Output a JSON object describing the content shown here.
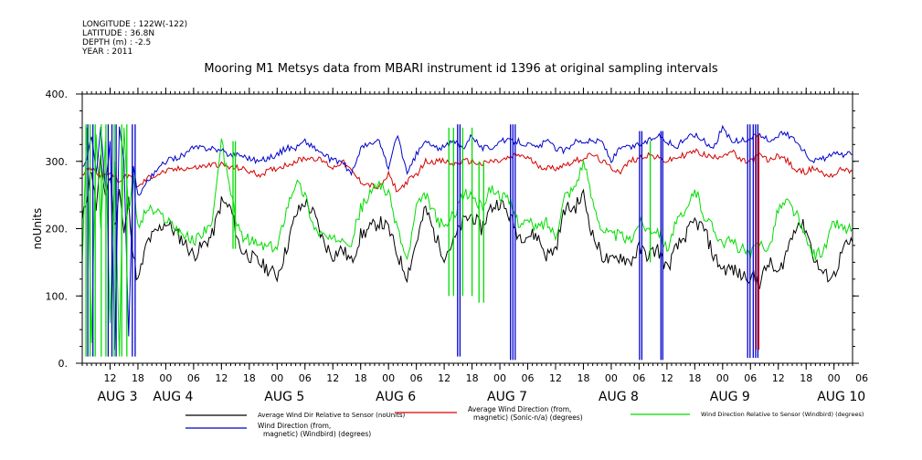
{
  "header": {
    "longitude": "LONGITUDE : 122W(-122)",
    "latitude": "LATITUDE : 36.8N",
    "depth": "DEPTH (m) : -2.5",
    "year": "YEAR : 2011"
  },
  "chart_data": {
    "type": "line",
    "title": "Mooring M1 Metsys data from MBARI instrument id 1396 at original sampling intervals",
    "ylabel": "noUnits",
    "ylim": [
      0,
      400
    ],
    "yticks": [
      0,
      100,
      200,
      300,
      400
    ],
    "ytick_labels": [
      "0.",
      "100.",
      "200.",
      "300.",
      "400."
    ],
    "x_range_hours": [
      6,
      172
    ],
    "x_unit": "hours since AUG 3 00:00",
    "hour_ticks": [
      {
        "h": 12,
        "label": "12"
      },
      {
        "h": 18,
        "label": "18"
      },
      {
        "h": 24,
        "label": "00"
      },
      {
        "h": 30,
        "label": "06"
      },
      {
        "h": 36,
        "label": "12"
      },
      {
        "h": 42,
        "label": "18"
      },
      {
        "h": 48,
        "label": "00"
      },
      {
        "h": 54,
        "label": "06"
      },
      {
        "h": 60,
        "label": "12"
      },
      {
        "h": 66,
        "label": "18"
      },
      {
        "h": 72,
        "label": "00"
      },
      {
        "h": 78,
        "label": "06"
      },
      {
        "h": 84,
        "label": "12"
      },
      {
        "h": 90,
        "label": "18"
      },
      {
        "h": 96,
        "label": "00"
      },
      {
        "h": 102,
        "label": "06"
      },
      {
        "h": 108,
        "label": "12"
      },
      {
        "h": 114,
        "label": "18"
      },
      {
        "h": 120,
        "label": "00"
      },
      {
        "h": 126,
        "label": "06"
      },
      {
        "h": 132,
        "label": "12"
      },
      {
        "h": 138,
        "label": "18"
      },
      {
        "h": 144,
        "label": "00"
      },
      {
        "h": 150,
        "label": "06"
      },
      {
        "h": 156,
        "label": "12"
      },
      {
        "h": 162,
        "label": "18"
      },
      {
        "h": 168,
        "label": "00"
      },
      {
        "h": 174,
        "label": "06"
      }
    ],
    "day_labels": [
      {
        "h": 12,
        "label": "AUG  3"
      },
      {
        "h": 24,
        "label": "AUG  4"
      },
      {
        "h": 48,
        "label": "AUG  5"
      },
      {
        "h": 72,
        "label": "AUG  6"
      },
      {
        "h": 96,
        "label": "AUG  7"
      },
      {
        "h": 120,
        "label": "AUG  8"
      },
      {
        "h": 144,
        "label": "AUG  9"
      },
      {
        "h": 168,
        "label": "AUG 10"
      }
    ],
    "series": [
      {
        "name": "Average Wind Dir Relative to Sensor (noUnits)",
        "color": "#000000",
        "x": [
          6,
          8,
          9,
          10,
          11,
          12,
          13,
          14,
          15,
          16,
          17,
          18,
          20,
          24,
          28,
          30,
          34,
          36,
          38,
          40,
          44,
          48,
          50,
          52,
          54,
          56,
          58,
          60,
          62,
          64,
          66,
          70,
          72,
          74,
          76,
          78,
          80,
          82,
          84,
          86,
          88,
          90,
          92,
          94,
          96,
          98,
          100,
          102,
          104,
          106,
          108,
          110,
          112,
          114,
          116,
          118,
          120,
          122,
          124,
          126,
          128,
          130,
          132,
          134,
          136,
          138,
          140,
          142,
          144,
          146,
          148,
          150,
          152,
          154,
          156,
          158,
          160,
          162,
          164,
          166,
          168,
          170,
          172
        ],
        "y": [
          210,
          290,
          230,
          300,
          250,
          280,
          200,
          260,
          190,
          240,
          160,
          120,
          180,
          210,
          180,
          160,
          190,
          240,
          230,
          170,
          150,
          130,
          170,
          220,
          240,
          220,
          180,
          160,
          170,
          150,
          190,
          210,
          200,
          160,
          130,
          180,
          230,
          190,
          160,
          180,
          210,
          220,
          200,
          230,
          240,
          220,
          190,
          190,
          190,
          160,
          170,
          230,
          230,
          250,
          190,
          160,
          150,
          160,
          150,
          170,
          160,
          170,
          140,
          170,
          190,
          210,
          200,
          160,
          140,
          140,
          130,
          130,
          120,
          150,
          130,
          170,
          210,
          200,
          150,
          130,
          130,
          170,
          180
        ]
      },
      {
        "name": "Average Wind Direction (from, magnetic) (Sonic-n/a) (degrees)",
        "color": "#d40000",
        "x": [
          6,
          8,
          10,
          12,
          14,
          16,
          18,
          20,
          24,
          28,
          30,
          34,
          36,
          38,
          40,
          44,
          48,
          50,
          52,
          54,
          56,
          58,
          60,
          62,
          64,
          66,
          70,
          72,
          74,
          76,
          78,
          80,
          82,
          84,
          86,
          88,
          90,
          92,
          94,
          96,
          98,
          100,
          102,
          104,
          106,
          108,
          110,
          112,
          114,
          116,
          118,
          120,
          122,
          124,
          126,
          128,
          130,
          132,
          134,
          136,
          138,
          140,
          142,
          144,
          146,
          148,
          150,
          152,
          154,
          156,
          158,
          160,
          162,
          164,
          166,
          168,
          170,
          172
        ],
        "y": [
          280,
          290,
          275,
          285,
          270,
          280,
          260,
          275,
          285,
          290,
          290,
          295,
          295,
          290,
          290,
          280,
          290,
          295,
          300,
          305,
          305,
          300,
          290,
          300,
          285,
          270,
          260,
          280,
          255,
          270,
          280,
          300,
          300,
          300,
          295,
          300,
          300,
          295,
          300,
          300,
          305,
          310,
          305,
          295,
          290,
          290,
          295,
          300,
          305,
          310,
          300,
          290,
          285,
          300,
          305,
          310,
          305,
          300,
          305,
          310,
          315,
          310,
          305,
          310,
          315,
          300,
          300,
          310,
          300,
          310,
          300,
          285,
          285,
          290,
          280,
          280,
          290,
          285
        ]
      },
      {
        "name": "Wind Direction Relative to Sensor (Windbird) (degrees)",
        "color": "#00dd00",
        "x": [
          6,
          7,
          8,
          9,
          10,
          11,
          12,
          13,
          14,
          15,
          16,
          17,
          18,
          20,
          24,
          28,
          30,
          34,
          36,
          38,
          40,
          44,
          48,
          50,
          52,
          54,
          56,
          58,
          60,
          62,
          64,
          66,
          70,
          72,
          74,
          76,
          78,
          80,
          82,
          84,
          86,
          88,
          90,
          92,
          94,
          96,
          98,
          100,
          102,
          104,
          106,
          108,
          110,
          112,
          114,
          116,
          118,
          120,
          122,
          124,
          126,
          128,
          130,
          132,
          134,
          136,
          138,
          140,
          142,
          144,
          146,
          148,
          150,
          152,
          154,
          156,
          158,
          160,
          162,
          164,
          166,
          168,
          170,
          172
        ],
        "y": [
          150,
          350,
          30,
          340,
          200,
          330,
          60,
          300,
          10,
          350,
          220,
          280,
          200,
          230,
          215,
          190,
          180,
          210,
          330,
          250,
          190,
          175,
          170,
          230,
          270,
          250,
          200,
          190,
          180,
          190,
          180,
          230,
          270,
          250,
          200,
          150,
          230,
          250,
          220,
          200,
          220,
          250,
          250,
          230,
          260,
          250,
          240,
          210,
          210,
          200,
          210,
          190,
          250,
          260,
          300,
          240,
          200,
          190,
          190,
          180,
          210,
          200,
          200,
          170,
          210,
          220,
          260,
          220,
          200,
          180,
          180,
          170,
          160,
          180,
          170,
          230,
          240,
          220,
          180,
          160,
          170,
          210,
          200,
          200
        ]
      },
      {
        "name": "Wind Direction (from, magnetic) (Windbird) (degrees)",
        "color": "#0000cc",
        "x": [
          6,
          7,
          8,
          9,
          10,
          11,
          12,
          13,
          14,
          15,
          16,
          17,
          18,
          20,
          24,
          28,
          30,
          34,
          36,
          38,
          40,
          44,
          48,
          50,
          52,
          54,
          56,
          58,
          60,
          62,
          64,
          66,
          70,
          72,
          74,
          76,
          78,
          80,
          82,
          84,
          86,
          88,
          90,
          92,
          94,
          96,
          98,
          100,
          102,
          104,
          106,
          108,
          110,
          112,
          114,
          116,
          118,
          120,
          122,
          124,
          126,
          128,
          130,
          132,
          134,
          136,
          138,
          140,
          142,
          144,
          146,
          148,
          150,
          152,
          154,
          156,
          158,
          160,
          162,
          164,
          166,
          168,
          170,
          172
        ],
        "y": [
          290,
          300,
          340,
          280,
          350,
          260,
          330,
          20,
          350,
          300,
          40,
          290,
          250,
          270,
          300,
          310,
          320,
          320,
          315,
          310,
          310,
          300,
          310,
          320,
          320,
          330,
          320,
          310,
          300,
          300,
          280,
          320,
          330,
          290,
          340,
          280,
          310,
          330,
          320,
          320,
          330,
          320,
          340,
          320,
          320,
          330,
          330,
          330,
          325,
          320,
          330,
          320,
          315,
          330,
          330,
          330,
          330,
          300,
          320,
          320,
          325,
          330,
          340,
          330,
          320,
          335,
          340,
          330,
          320,
          350,
          330,
          330,
          335,
          340,
          330,
          340,
          340,
          330,
          310,
          300,
          305,
          310,
          310,
          310
        ]
      }
    ],
    "spikes": [
      {
        "series": 3,
        "h": [
          7.2,
          8.3,
          11.6,
          12.4,
          13.3,
          16.8,
          17.4
        ],
        "lo": 10,
        "hi": 355
      },
      {
        "series": 3,
        "h": [
          86.9,
          87.4
        ],
        "lo": 10,
        "hi": 355
      },
      {
        "series": 3,
        "h": [
          98.3,
          98.8,
          99.3
        ],
        "lo": 5,
        "hi": 355
      },
      {
        "series": 3,
        "h": [
          126.1,
          126.6,
          130.7,
          131.1
        ],
        "lo": 5,
        "hi": 345
      },
      {
        "series": 3,
        "h": [
          149.4,
          149.9,
          150.6,
          151.1,
          151.6
        ],
        "lo": 8,
        "hi": 355
      },
      {
        "series": 2,
        "h": [
          6.8,
          7.7,
          8.8,
          10.1,
          11.1,
          12.9,
          14.5,
          15.6
        ],
        "lo": 10,
        "hi": 355
      },
      {
        "series": 2,
        "h": [
          38.5,
          39.0
        ],
        "lo": 170,
        "hi": 330
      },
      {
        "series": 2,
        "h": [
          85.0,
          86.0,
          88.0,
          90.0
        ],
        "lo": 100,
        "hi": 350
      },
      {
        "series": 2,
        "h": [
          91.5,
          92.5
        ],
        "lo": 90,
        "hi": 300
      },
      {
        "series": 2,
        "h": [
          128.4
        ],
        "lo": 150,
        "hi": 330
      },
      {
        "series": 1,
        "h": [
          151.2,
          151.8
        ],
        "lo": 20,
        "hi": 340
      }
    ],
    "legend": [
      {
        "series": 0,
        "label": "Average Wind Dir Relative to Sensor (noUnits)"
      },
      {
        "series": 1,
        "label_lines": [
          "Average Wind Direction (from,",
          "magnetic) (Sonic-n/a) (degrees)"
        ]
      },
      {
        "series": 2,
        "label": "Wind Direction Relative to Sensor (Windbird) (degrees)"
      },
      {
        "series": 3,
        "label_lines": [
          "Wind Direction (from,",
          "magnetic) (Windbird) (degrees)"
        ]
      }
    ],
    "grid": false,
    "legend_position": "bottom"
  }
}
